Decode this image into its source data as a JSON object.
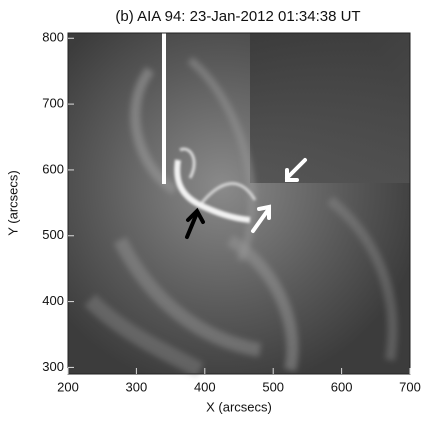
{
  "chart_data": {
    "type": "image",
    "title": "(b) AIA 94: 23-Jan-2012 01:34:38 UT",
    "x_label": "X (arcsecs)",
    "y_label": "Y (arcsecs)",
    "xlim": [
      200,
      700
    ],
    "ylim": [
      290,
      808
    ],
    "xticks": [
      200,
      300,
      400,
      500,
      600,
      700
    ],
    "yticks": [
      300,
      400,
      500,
      600,
      700,
      800
    ]
  }
}
